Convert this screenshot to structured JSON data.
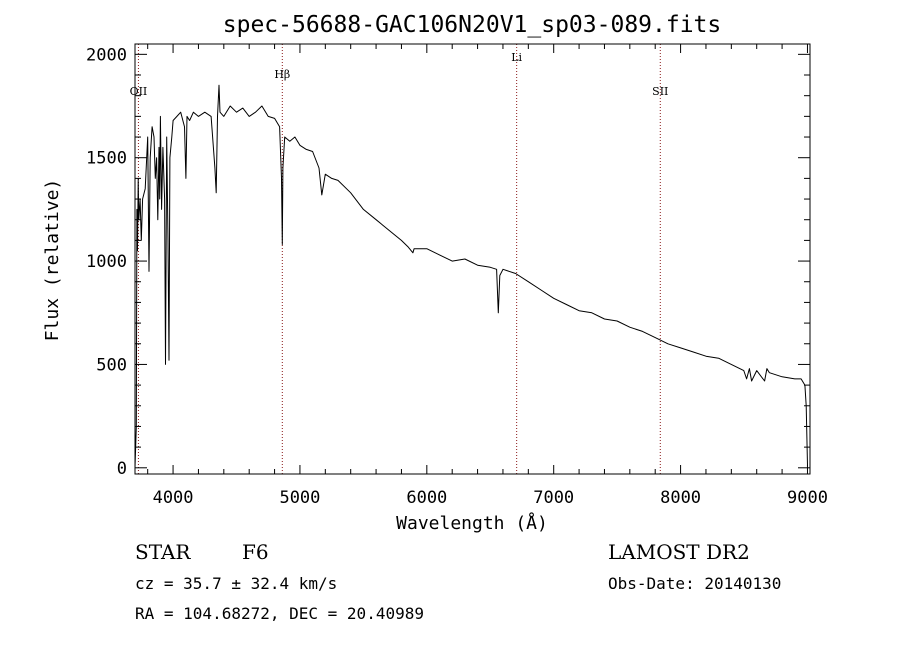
{
  "chart_data": {
    "type": "line",
    "title": "spec-56688-GAC106N20V1_sp03-089.fits",
    "xlabel": "Wavelength (Å)",
    "ylabel": "Flux (relative)",
    "xlim": [
      3700,
      9020
    ],
    "ylim": [
      -30,
      2050
    ],
    "xticks": [
      4000,
      5000,
      6000,
      7000,
      8000,
      9000
    ],
    "xtick_labels": [
      "4000",
      "5000",
      "6000",
      "7000",
      "8000",
      "9000"
    ],
    "yticks": [
      0,
      500,
      1000,
      1500,
      2000
    ],
    "ytick_labels": [
      "0",
      "500",
      "1000",
      "1500",
      "2000"
    ],
    "grid": false,
    "series": [
      {
        "x": [
          3700,
          3710,
          3715,
          3720,
          3725,
          3730,
          3740,
          3750,
          3760,
          3780,
          3800,
          3810,
          3820,
          3835,
          3850,
          3860,
          3870,
          3880,
          3889,
          3895,
          3900,
          3910,
          3920,
          3933,
          3940,
          3950,
          3960,
          3968,
          3975,
          3990,
          4000,
          4030,
          4060,
          4090,
          4101,
          4110,
          4130,
          4160,
          4200,
          4250,
          4300,
          4330,
          4340,
          4350,
          4362,
          4370,
          4400,
          4450,
          4500,
          4550,
          4600,
          4650,
          4700,
          4750,
          4800,
          4840,
          4855,
          4861,
          4866,
          4880,
          4920,
          4960,
          5000,
          5050,
          5100,
          5150,
          5172,
          5200,
          5250,
          5300,
          5400,
          5500,
          5600,
          5700,
          5800,
          5850,
          5890,
          5900,
          6000,
          6100,
          6200,
          6300,
          6400,
          6500,
          6550,
          6563,
          6575,
          6600,
          6700,
          6800,
          6900,
          7000,
          7100,
          7200,
          7300,
          7400,
          7500,
          7600,
          7700,
          7800,
          7900,
          8000,
          8100,
          8200,
          8300,
          8400,
          8498,
          8520,
          8542,
          8560,
          8600,
          8662,
          8680,
          8700,
          8800,
          8900,
          8950,
          8980,
          8990,
          9000
        ],
        "values": [
          0,
          200,
          1250,
          1050,
          1400,
          1200,
          1300,
          1100,
          1300,
          1350,
          1600,
          950,
          1500,
          1650,
          1600,
          1400,
          1500,
          1200,
          1550,
          1300,
          1700,
          1250,
          1550,
          1300,
          500,
          1600,
          1100,
          520,
          1500,
          1600,
          1680,
          1700,
          1720,
          1650,
          1400,
          1700,
          1680,
          1720,
          1700,
          1720,
          1700,
          1450,
          1330,
          1700,
          1850,
          1720,
          1700,
          1750,
          1720,
          1740,
          1700,
          1720,
          1750,
          1700,
          1690,
          1650,
          1400,
          1080,
          1450,
          1600,
          1580,
          1600,
          1560,
          1540,
          1530,
          1450,
          1320,
          1420,
          1400,
          1390,
          1330,
          1250,
          1200,
          1150,
          1100,
          1070,
          1040,
          1060,
          1060,
          1030,
          1000,
          1010,
          980,
          970,
          960,
          750,
          930,
          960,
          940,
          900,
          860,
          820,
          790,
          760,
          750,
          720,
          710,
          680,
          660,
          630,
          600,
          580,
          560,
          540,
          530,
          500,
          470,
          430,
          480,
          420,
          470,
          420,
          480,
          460,
          440,
          430,
          430,
          400,
          300,
          10
        ]
      }
    ],
    "annotations": [
      {
        "label": "OII",
        "x": 3727
      },
      {
        "label": "Hβ",
        "x": 4861
      },
      {
        "label": "Li",
        "x": 6708
      },
      {
        "label": "SII",
        "x": 7840
      }
    ]
  },
  "info": {
    "class_label": "STAR",
    "subclass": "F6",
    "survey": "LAMOST DR2",
    "cz": "cz = 35.7 ± 32.4 km/s",
    "obs_date": "Obs-Date: 20140130",
    "radec": "RA = 104.68272, DEC =  20.40989"
  },
  "colors": {
    "spectrum": "#000000",
    "marker_line": "#8b1a1a",
    "axis": "#000000",
    "background": "#ffffff"
  }
}
